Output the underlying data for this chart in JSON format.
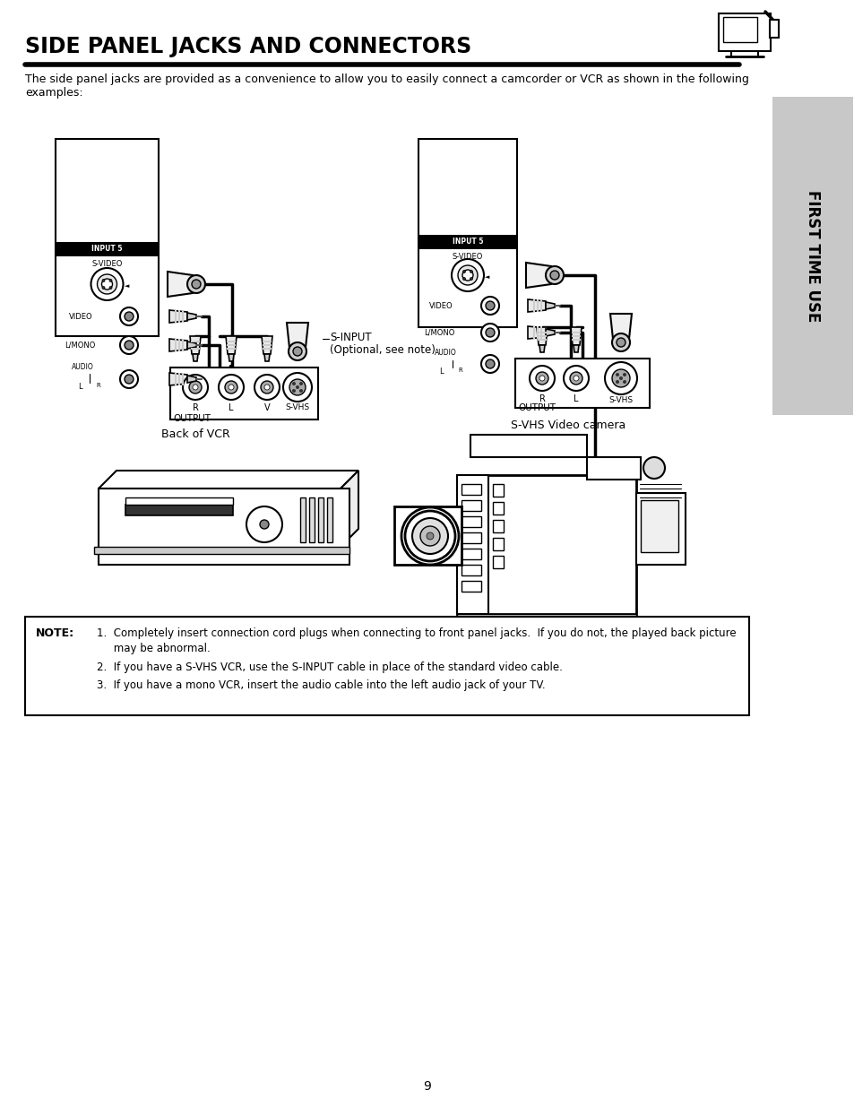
{
  "title": "SIDE PANEL JACKS AND CONNECTORS",
  "page_bg": "#ffffff",
  "page_num": "9",
  "sidebar_text": "FIRST TIME USE",
  "sidebar_bg": "#c8c8c8",
  "intro_text": "The side panel jacks are provided as a convenience to allow you to easily connect a camcorder or VCR as shown in the following\nexamples:",
  "note_label": "NOTE:",
  "note_line1": "1.  Completely insert connection cord plugs when connecting to front panel jacks.  If you do not, the played back picture",
  "note_line2": "     may be abnormal.",
  "note_line3": "2.  If you have a S-VHS VCR, use the S-INPUT cable in place of the standard video cable.",
  "note_line4": "3.  If you have a mono VCR, insert the audio cable into the left audio jack of your TV.",
  "left_caption": "Back of VCR",
  "right_caption": "S-VHS Video camera",
  "sinput_label1": "S-INPUT",
  "sinput_label2": "(Optional, see note)"
}
